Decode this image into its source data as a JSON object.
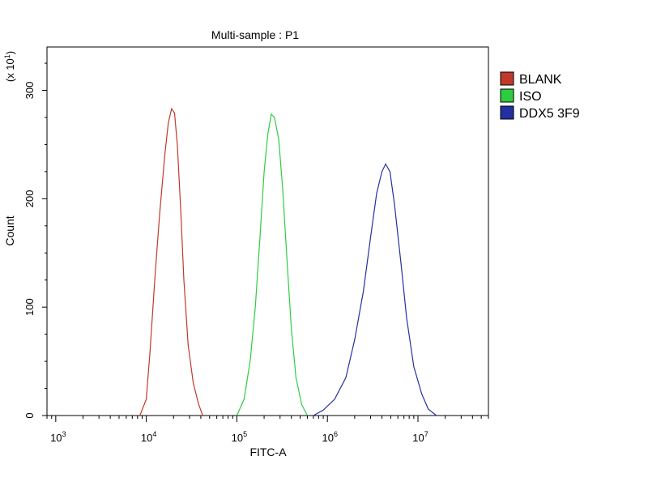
{
  "chart_data": {
    "type": "line",
    "title": "Multi-sample : P1",
    "xlabel": "FITC-A",
    "ylabel": "Count",
    "ylabel_multiplier": "(x 10",
    "ylabel_multiplier_exp": "1",
    "ylabel_multiplier_close": ")",
    "xscale": "log",
    "xlim": [
      800,
      60000000
    ],
    "ylim": [
      0,
      3400
    ],
    "x_ticks": [
      {
        "base": "10",
        "exp": "3",
        "value": 1000
      },
      {
        "base": "10",
        "exp": "4",
        "value": 10000
      },
      {
        "base": "10",
        "exp": "5",
        "value": 100000
      },
      {
        "base": "10",
        "exp": "6",
        "value": 1000000
      },
      {
        "base": "10",
        "exp": "7",
        "value": 10000000
      }
    ],
    "y_ticks": [
      {
        "label": "0",
        "value": 0
      },
      {
        "label": "100",
        "value": 1000
      },
      {
        "label": "200",
        "value": 2000
      },
      {
        "label": "300",
        "value": 3000
      }
    ],
    "grid": false,
    "legend_position": "right",
    "series": [
      {
        "name": "BLANK",
        "color": "#c0392b",
        "points": [
          [
            8500,
            0
          ],
          [
            10000,
            150
          ],
          [
            11000,
            600
          ],
          [
            12500,
            1300
          ],
          [
            14000,
            1850
          ],
          [
            16000,
            2400
          ],
          [
            17500,
            2700
          ],
          [
            19000,
            2830
          ],
          [
            20500,
            2790
          ],
          [
            22000,
            2500
          ],
          [
            24000,
            1900
          ],
          [
            26000,
            1250
          ],
          [
            29000,
            650
          ],
          [
            33000,
            300
          ],
          [
            38000,
            100
          ],
          [
            42000,
            0
          ]
        ]
      },
      {
        "name": "ISO",
        "color": "#2ecc40",
        "points": [
          [
            100000,
            0
          ],
          [
            120000,
            150
          ],
          [
            140000,
            500
          ],
          [
            160000,
            1000
          ],
          [
            180000,
            1650
          ],
          [
            200000,
            2250
          ],
          [
            220000,
            2600
          ],
          [
            240000,
            2780
          ],
          [
            260000,
            2750
          ],
          [
            290000,
            2550
          ],
          [
            320000,
            2100
          ],
          [
            360000,
            1400
          ],
          [
            400000,
            800
          ],
          [
            450000,
            350
          ],
          [
            520000,
            100
          ],
          [
            600000,
            0
          ]
        ]
      },
      {
        "name": "DDX5 3F9",
        "color": "#2230a0",
        "points": [
          [
            700000,
            0
          ],
          [
            900000,
            50
          ],
          [
            1200000,
            150
          ],
          [
            1600000,
            350
          ],
          [
            2000000,
            700
          ],
          [
            2500000,
            1150
          ],
          [
            3000000,
            1650
          ],
          [
            3500000,
            2050
          ],
          [
            4000000,
            2250
          ],
          [
            4400000,
            2320
          ],
          [
            4900000,
            2250
          ],
          [
            5500000,
            1950
          ],
          [
            6500000,
            1400
          ],
          [
            7500000,
            900
          ],
          [
            9000000,
            450
          ],
          [
            11000000,
            200
          ],
          [
            13000000,
            60
          ],
          [
            16000000,
            0
          ]
        ]
      }
    ]
  }
}
